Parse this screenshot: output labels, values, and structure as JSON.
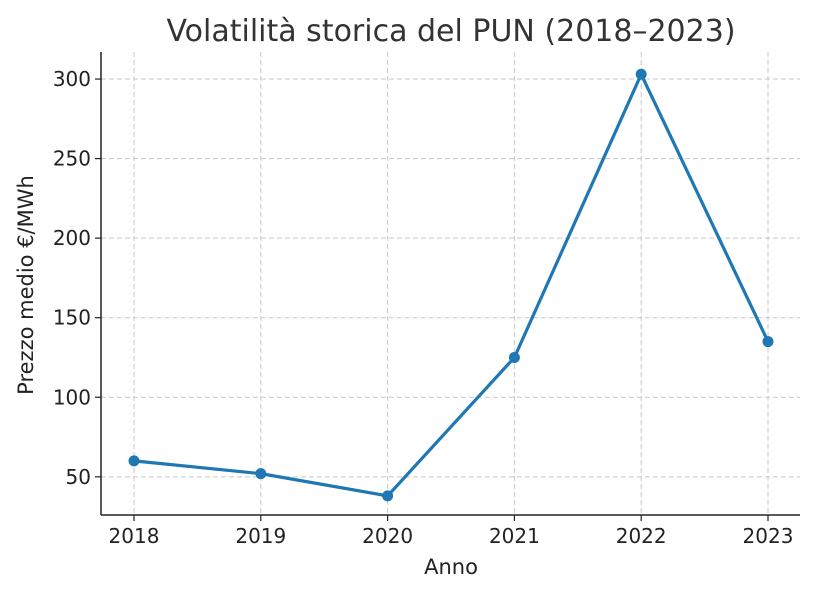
{
  "chart_data": {
    "type": "line",
    "title": "Volatilità storica del PUN (2018–2023)",
    "xlabel": "Anno",
    "ylabel": "Prezzo medio €/MWh",
    "categories": [
      "2018",
      "2019",
      "2020",
      "2021",
      "2022",
      "2023"
    ],
    "series": [
      {
        "values": [
          60,
          52,
          38,
          125,
          303,
          135
        ],
        "color": "#1f77b4"
      }
    ],
    "yticks": [
      "50",
      "100",
      "150",
      "200",
      "250",
      "300"
    ],
    "ylim": [
      26,
      317
    ],
    "grid": true,
    "marker": "circle"
  }
}
